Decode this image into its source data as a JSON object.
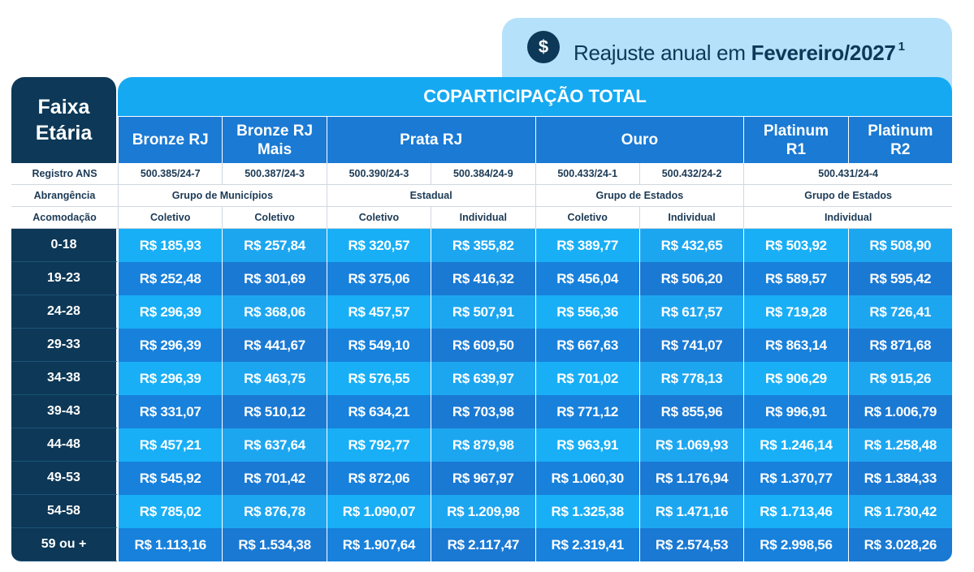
{
  "badge": {
    "icon": "$",
    "text": "Reajuste anual em ",
    "highlight": "Fevereiro/2027",
    "note": "1"
  },
  "table": {
    "corner": "Faixa Etária",
    "title": "COPARTICIPAÇÃO TOTAL",
    "plans": [
      "Bronze RJ",
      "Bronze RJ Mais",
      "Prata RJ",
      "Ouro",
      "Platinum R1",
      "Platinum R2"
    ],
    "registro": {
      "label": "Registro ANS",
      "cells": [
        "500.385/24-7",
        "500.387/24-3",
        "500.390/24-3",
        "500.384/24-9",
        "500.433/24-1",
        "500.432/24-2",
        "500.431/24-4"
      ]
    },
    "abrangencia": {
      "label": "Abrangência",
      "cells": [
        "Grupo de Municípios",
        "Estadual",
        "Grupo de Estados",
        "Grupo de Estados"
      ]
    },
    "acomodacao": {
      "label": "Acomodação",
      "cells": [
        "Coletivo",
        "Coletivo",
        "Coletivo",
        "Individual",
        "Coletivo",
        "Individual",
        "Individual"
      ]
    },
    "rows": [
      {
        "age": "0-18",
        "values": [
          "R$ 185,93",
          "R$ 257,84",
          "R$ 320,57",
          "R$ 355,82",
          "R$ 389,77",
          "R$ 432,65",
          "R$ 503,92",
          "R$ 508,90"
        ]
      },
      {
        "age": "19-23",
        "values": [
          "R$ 252,48",
          "R$ 301,69",
          "R$ 375,06",
          "R$ 416,32",
          "R$ 456,04",
          "R$ 506,20",
          "R$ 589,57",
          "R$ 595,42"
        ]
      },
      {
        "age": "24-28",
        "values": [
          "R$ 296,39",
          "R$ 368,06",
          "R$ 457,57",
          "R$ 507,91",
          "R$ 556,36",
          "R$ 617,57",
          "R$ 719,28",
          "R$ 726,41"
        ]
      },
      {
        "age": "29-33",
        "values": [
          "R$ 296,39",
          "R$ 441,67",
          "R$ 549,10",
          "R$ 609,50",
          "R$ 667,63",
          "R$ 741,07",
          "R$ 863,14",
          "R$ 871,68"
        ]
      },
      {
        "age": "34-38",
        "values": [
          "R$ 296,39",
          "R$ 463,75",
          "R$ 576,55",
          "R$ 639,97",
          "R$ 701,02",
          "R$ 778,13",
          "R$ 906,29",
          "R$ 915,26"
        ]
      },
      {
        "age": "39-43",
        "values": [
          "R$ 331,07",
          "R$ 510,12",
          "R$ 634,21",
          "R$ 703,98",
          "R$ 771,12",
          "R$ 855,96",
          "R$ 996,91",
          "R$ 1.006,79"
        ]
      },
      {
        "age": "44-48",
        "values": [
          "R$ 457,21",
          "R$ 637,64",
          "R$ 792,77",
          "R$ 879,98",
          "R$ 963,91",
          "R$ 1.069,93",
          "R$ 1.246,14",
          "R$ 1.258,48"
        ]
      },
      {
        "age": "49-53",
        "values": [
          "R$ 545,92",
          "R$ 701,42",
          "R$ 872,06",
          "R$ 967,97",
          "R$ 1.060,30",
          "R$ 1.176,94",
          "R$ 1.370,77",
          "R$ 1.384,33"
        ]
      },
      {
        "age": "54-58",
        "values": [
          "R$ 785,02",
          "R$ 876,78",
          "R$ 1.090,07",
          "R$ 1.209,98",
          "R$ 1.325,38",
          "R$ 1.471,16",
          "R$ 1.713,46",
          "R$ 1.730,42"
        ]
      },
      {
        "age": "59 ou +",
        "values": [
          "R$ 1.113,16",
          "R$ 1.534,38",
          "R$ 1.907,64",
          "R$ 2.117,47",
          "R$ 2.319,41",
          "R$ 2.574,53",
          "R$ 2.998,56",
          "R$ 3.028,26"
        ]
      }
    ]
  }
}
